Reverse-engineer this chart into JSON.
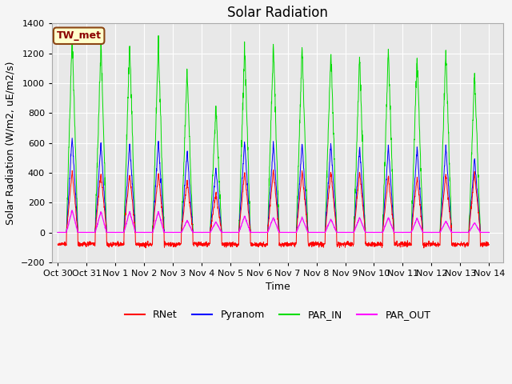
{
  "title": "Solar Radiation",
  "ylabel": "Solar Radiation (W/m2, uE/m2/s)",
  "xlabel": "Time",
  "ylim": [
    -200,
    1400
  ],
  "yticks": [
    -200,
    0,
    200,
    400,
    600,
    800,
    1000,
    1200,
    1400
  ],
  "n_days": 15,
  "station_label": "TW_met",
  "colors": {
    "RNet": "#ff0000",
    "Pyranom": "#0000ff",
    "PAR_IN": "#00dd00",
    "PAR_OUT": "#ff00ff"
  },
  "background_color": "#e8e8e8",
  "grid_color": "#ffffff",
  "title_fontsize": 12,
  "label_fontsize": 9,
  "tick_fontsize": 8,
  "par_peaks": [
    1330,
    1270,
    1260,
    1280,
    1090,
    850,
    1250,
    1260,
    1250,
    1230,
    1190,
    1230,
    1190,
    1230,
    1070
  ],
  "pyranom_peaks": [
    640,
    600,
    600,
    610,
    545,
    430,
    610,
    600,
    600,
    600,
    570,
    580,
    570,
    580,
    500
  ],
  "rnet_peaks": [
    410,
    400,
    390,
    400,
    350,
    260,
    410,
    420,
    410,
    410,
    410,
    380,
    370,
    390,
    400
  ],
  "parout_peaks": [
    150,
    140,
    140,
    140,
    80,
    70,
    110,
    100,
    100,
    90,
    100,
    100,
    95,
    75,
    65
  ],
  "tick_positions": [
    0,
    1,
    2,
    3,
    4,
    5,
    6,
    7,
    8,
    9,
    10,
    11,
    12,
    13,
    14,
    15
  ],
  "tick_labels": [
    "Oct 30",
    "Oct 31",
    "Nov 1",
    "Nov 2",
    "Nov 3",
    "Nov 4",
    "Nov 5",
    "Nov 6",
    "Nov 7",
    "Nov 8",
    "Nov 9",
    "Nov 10",
    "Nov 11",
    "Nov 12",
    "Nov 13",
    "Nov 14"
  ]
}
